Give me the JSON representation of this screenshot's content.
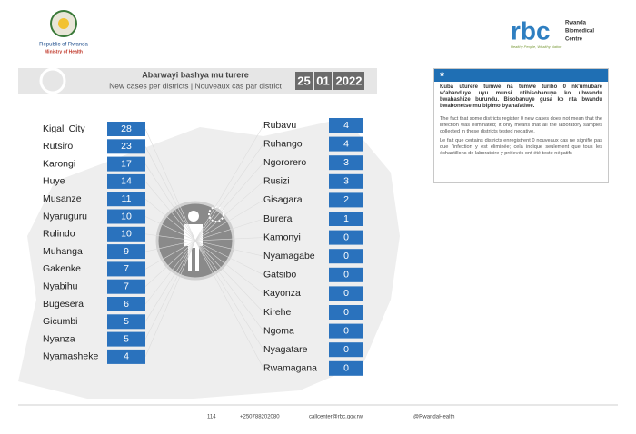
{
  "header": {
    "left_org": [
      "Republic of Rwanda",
      "Ministry of Health"
    ],
    "logo_text": "rbc",
    "right_org": [
      "Rwanda",
      "Biomedical",
      "Centre"
    ],
    "slogan": "Healthy People, Wealthy Nation"
  },
  "banner": {
    "title": "Abarwayi bashya mu turere",
    "subtitle": "New cases per districts  |  Nouveaux cas par district",
    "date": [
      "25",
      "01",
      "2022"
    ]
  },
  "left_table": [
    {
      "district": "Kigali City",
      "cases": 28
    },
    {
      "district": "Rutsiro",
      "cases": 23
    },
    {
      "district": "Karongi",
      "cases": 17
    },
    {
      "district": "Huye",
      "cases": 14
    },
    {
      "district": "Musanze",
      "cases": 11
    },
    {
      "district": "Nyaruguru",
      "cases": 10
    },
    {
      "district": "Rulindo",
      "cases": 10
    },
    {
      "district": "Muhanga",
      "cases": 9
    },
    {
      "district": "Gakenke",
      "cases": 7
    },
    {
      "district": "Nyabihu",
      "cases": 7
    },
    {
      "district": "Bugesera",
      "cases": 6
    },
    {
      "district": "Gicumbi",
      "cases": 5
    },
    {
      "district": "Nyanza",
      "cases": 5
    },
    {
      "district": "Nyamasheke",
      "cases": 4
    }
  ],
  "right_table": [
    {
      "district": "Rubavu",
      "cases": 4
    },
    {
      "district": "Ruhango",
      "cases": 4
    },
    {
      "district": "Ngororero",
      "cases": 3
    },
    {
      "district": "Rusizi",
      "cases": 3
    },
    {
      "district": "Gisagara",
      "cases": 2
    },
    {
      "district": "Burera",
      "cases": 1
    },
    {
      "district": "Kamonyi",
      "cases": 0
    },
    {
      "district": "Nyamagabe",
      "cases": 0
    },
    {
      "district": "Gatsibo",
      "cases": 0
    },
    {
      "district": "Kayonza",
      "cases": 0
    },
    {
      "district": "Kirehe",
      "cases": 0
    },
    {
      "district": "Ngoma",
      "cases": 0
    },
    {
      "district": "Nyagatare",
      "cases": 0
    },
    {
      "district": "Rwamagana",
      "cases": 0
    }
  ],
  "note": {
    "icon": "*",
    "paragraphs": [
      "Kuba uturere tumwe na tumwe turiho 0 nk'umubare w'abanduye uyu munsi ntibisobanuye ko ubwandu bwahashize burundu. Bisobanuye gusa ko nta bwandu bwabonetse mu bipimo byahafatiwe.",
      "The fact that some districts register 0 new cases does not mean that the infection was eliminated; it only means that all the laboratory samples collected in those districts tested negative.",
      "Le fait que certains districts enregistrent 0 nouveaux cas ne signifie pas que l'infection y est éliminée; cela indique seulement que tous les échantillons de laboratoire y prélevés ont été testé négatifs"
    ]
  },
  "footer": [
    "114",
    "+250788202080",
    "callcenter@rbc.gov.rw",
    "@RwandaHealth"
  ]
}
